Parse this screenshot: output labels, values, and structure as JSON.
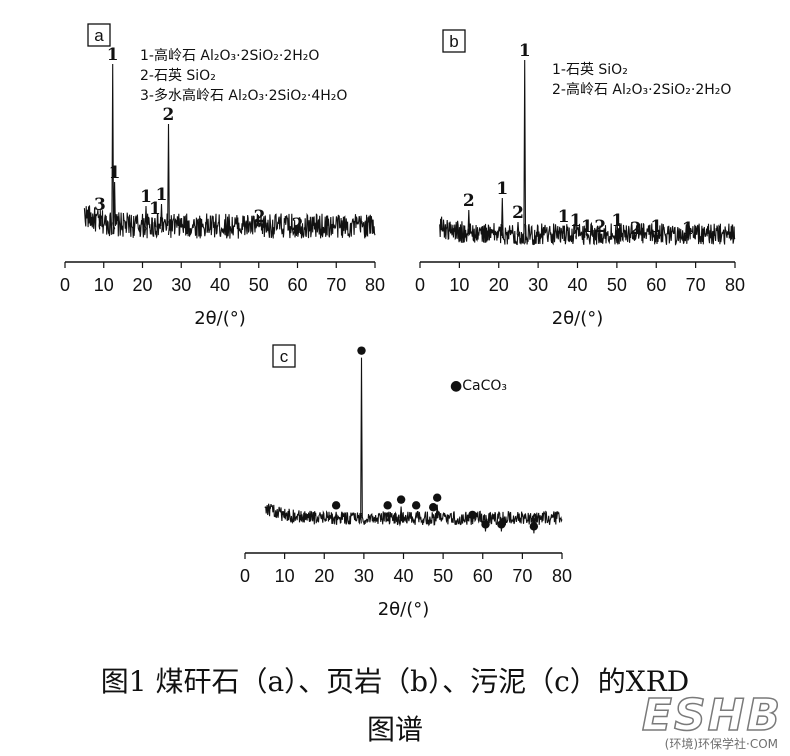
{
  "chart_data": [
    {
      "panel_label": "a",
      "type": "line",
      "xlabel": "2θ/(°)",
      "xlim": [
        0,
        80
      ],
      "xticks": [
        0,
        10,
        20,
        30,
        40,
        50,
        60,
        70,
        80
      ],
      "baseline": 0.12,
      "noise": 0.07,
      "peaks": [
        {
          "x": 9.0,
          "h": 0.18,
          "label": "3"
        },
        {
          "x": 12.3,
          "h": 0.93,
          "label": "1"
        },
        {
          "x": 12.8,
          "h": 0.34,
          "label": "1"
        },
        {
          "x": 20.9,
          "h": 0.22,
          "label": "1"
        },
        {
          "x": 23.2,
          "h": 0.16,
          "label": "1"
        },
        {
          "x": 24.9,
          "h": 0.23,
          "label": "1"
        },
        {
          "x": 26.7,
          "h": 0.63,
          "label": "2"
        },
        {
          "x": 50.2,
          "h": 0.12,
          "label": "2"
        },
        {
          "x": 60.0,
          "h": 0.08,
          "label": "2"
        }
      ],
      "legend": [
        "1-高岭石  Al₂O₃·2SiO₂·2H₂O",
        "2-石英  SiO₂",
        "3-多水高岭石  Al₂O₃·2SiO₂·4H₂O"
      ]
    },
    {
      "panel_label": "b",
      "type": "line",
      "xlabel": "2θ/(°)",
      "xlim": [
        0,
        80
      ],
      "xticks": [
        0,
        10,
        20,
        30,
        40,
        50,
        60,
        70,
        80
      ],
      "baseline": 0.08,
      "noise": 0.06,
      "peaks": [
        {
          "x": 12.4,
          "h": 0.2,
          "label": "2"
        },
        {
          "x": 20.9,
          "h": 0.26,
          "label": "1"
        },
        {
          "x": 24.9,
          "h": 0.14,
          "label": "2"
        },
        {
          "x": 26.6,
          "h": 0.95,
          "label": "1"
        },
        {
          "x": 36.5,
          "h": 0.12,
          "label": "1"
        },
        {
          "x": 39.5,
          "h": 0.1,
          "label": "1"
        },
        {
          "x": 42.4,
          "h": 0.07,
          "label": "1"
        },
        {
          "x": 45.8,
          "h": 0.07,
          "label": "2"
        },
        {
          "x": 50.1,
          "h": 0.1,
          "label": "1"
        },
        {
          "x": 54.8,
          "h": 0.06,
          "label": "2"
        },
        {
          "x": 60.0,
          "h": 0.07,
          "label": "1"
        },
        {
          "x": 68.0,
          "h": 0.06,
          "label": "1"
        }
      ],
      "legend": [
        "1-石英  SiO₂",
        "2-高岭石  Al₂O₃·2SiO₂·2H₂O"
      ]
    },
    {
      "panel_label": "c",
      "type": "line",
      "xlabel": "2θ/(°)",
      "xlim": [
        0,
        80
      ],
      "xticks": [
        0,
        10,
        20,
        30,
        40,
        50,
        60,
        70,
        80
      ],
      "x_start": 5,
      "baseline": 0.12,
      "noise": 0.04,
      "peaks": [
        {
          "x": 23.0,
          "h": 0.15,
          "label": "•"
        },
        {
          "x": 29.4,
          "h": 0.96,
          "label": "•"
        },
        {
          "x": 36.0,
          "h": 0.15,
          "label": "•"
        },
        {
          "x": 39.4,
          "h": 0.18,
          "label": "•"
        },
        {
          "x": 43.2,
          "h": 0.15,
          "label": "•"
        },
        {
          "x": 47.5,
          "h": 0.14,
          "label": "•"
        },
        {
          "x": 48.5,
          "h": 0.19,
          "label": "•"
        },
        {
          "x": 57.4,
          "h": 0.1,
          "label": "•"
        },
        {
          "x": 60.7,
          "h": 0.05,
          "label": "•"
        },
        {
          "x": 64.7,
          "h": 0.05,
          "label": "•"
        },
        {
          "x": 72.9,
          "h": 0.04,
          "label": "•"
        }
      ],
      "legend": [
        "●CaCO₃"
      ]
    }
  ],
  "caption": {
    "line1": "图1  煤矸石（a）、页岩（b）、污泥（c）的XRD",
    "line2": "图谱"
  },
  "watermark": {
    "logo": "ESHB",
    "sub": "(环境)环保学社·COM"
  }
}
